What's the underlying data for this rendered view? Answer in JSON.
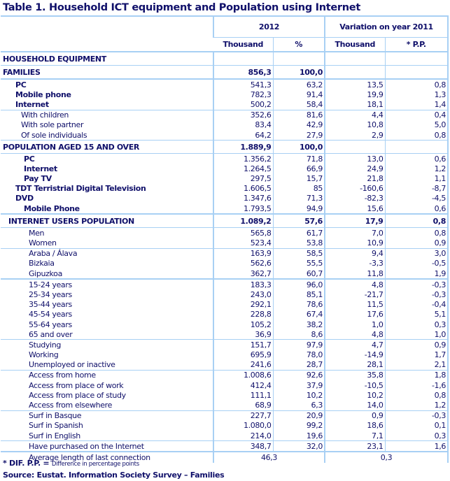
{
  "title": "Table 1. Household  ICT equipment and Population using Internet",
  "headers": {
    "group1": "2012",
    "group2": "Variation on year 2011",
    "col1": "Thousand",
    "col2": "%",
    "col3": "Thousand",
    "col4": "* P.P."
  },
  "rows": [
    {
      "type": "section",
      "label": "HOUSEHOLD EQUIPMENT",
      "values": [
        "",
        "",
        "",
        ""
      ],
      "border": "end"
    },
    {
      "type": "section",
      "label": "FAMILIES",
      "values": [
        "856,3",
        "100,0",
        "",
        ""
      ],
      "border": "thick"
    },
    {
      "type": "item",
      "bold": true,
      "label": "PC",
      "values": [
        "541,3",
        "63,2",
        "13,5",
        "0,8"
      ]
    },
    {
      "type": "item",
      "bold": true,
      "label": "Mobile phone",
      "values": [
        "782,3",
        "91,4",
        "19,9",
        "1,3"
      ]
    },
    {
      "type": "item",
      "bold": true,
      "label": "Internet",
      "values": [
        "500,2",
        "58,4",
        "18,1",
        "1,4"
      ],
      "border": "end"
    },
    {
      "type": "sub",
      "label": "With children",
      "values": [
        "352,6",
        "81,6",
        "4,4",
        "0,4"
      ]
    },
    {
      "type": "sub",
      "label": "With sole partner",
      "values": [
        "83,4",
        "42,9",
        "10,8",
        "5,0"
      ]
    },
    {
      "type": "sub",
      "label": "Of sole individuals",
      "values": [
        "64,2",
        "27,9",
        "2,9",
        "0,8"
      ],
      "border": "end"
    },
    {
      "type": "section",
      "label": "POPULATION AGED 15 AND OVER",
      "values": [
        "1.889,9",
        "100,0",
        "",
        ""
      ],
      "border": "end"
    },
    {
      "type": "pop",
      "bold": true,
      "label": "PC",
      "values": [
        "1.356,2",
        "71,8",
        "13,0",
        "0,6"
      ]
    },
    {
      "type": "pop",
      "bold": true,
      "label": "Internet",
      "values": [
        "1.264,5",
        "66,9",
        "24,9",
        "1,2"
      ]
    },
    {
      "type": "pop",
      "bold": true,
      "label": "Pay TV",
      "values": [
        "297,5",
        "15,7",
        "21,8",
        "1,1"
      ]
    },
    {
      "type": "item",
      "bold": true,
      "label": "TDT Terristrial Digital Television",
      "values": [
        "1.606,5",
        "85",
        "-160,6",
        "-8,7"
      ]
    },
    {
      "type": "item",
      "bold": true,
      "label": "DVD",
      "values": [
        "1.347,6",
        "71,3",
        "-82,3",
        "-4,5"
      ]
    },
    {
      "type": "pop",
      "bold": true,
      "label": "Mobile Phone",
      "values": [
        "1.793,5",
        "94,9",
        "15,6",
        "0,6"
      ],
      "border": "thick"
    },
    {
      "type": "section-indent",
      "label": "INTERNET USERS POPULATION",
      "values": [
        "1.089,2",
        "57,6",
        "17,9",
        "0,8"
      ],
      "border": "end"
    },
    {
      "type": "detail",
      "label": "Men",
      "values": [
        "565,8",
        "61,7",
        "7,0",
        "0,8"
      ]
    },
    {
      "type": "detail",
      "label": "Women",
      "values": [
        "523,4",
        "53,8",
        "10,9",
        "0,9"
      ],
      "border": "end"
    },
    {
      "type": "detail",
      "label": "Araba / Álava",
      "values": [
        "163,9",
        "58,5",
        "9,4",
        "3,0"
      ]
    },
    {
      "type": "detail",
      "label": "Bizkaia",
      "values": [
        "562,6",
        "55,5",
        "-3,3",
        "-0,5"
      ]
    },
    {
      "type": "detail",
      "label": "Gipuzkoa",
      "values": [
        "362,7",
        "60,7",
        "11,8",
        "1,9"
      ],
      "border": "thick"
    },
    {
      "type": "detail",
      "label": "15-24 years",
      "values": [
        "183,3",
        "96,0",
        "4,8",
        "-0,3"
      ]
    },
    {
      "type": "detail",
      "label": "25-34 years",
      "values": [
        "243,0",
        "85,1",
        "-21,7",
        "-0,3"
      ]
    },
    {
      "type": "detail",
      "label": "35-44 years",
      "values": [
        "292,1",
        "78,6",
        "11,5",
        "-0,4"
      ]
    },
    {
      "type": "detail",
      "label": "45-54 years",
      "values": [
        "228,8",
        "67,4",
        "17,6",
        "5,1"
      ]
    },
    {
      "type": "detail",
      "label": "55-64 years",
      "values": [
        "105,2",
        "38,2",
        "1,0",
        "0,3"
      ]
    },
    {
      "type": "detail",
      "label": "65 and over",
      "values": [
        "36,9",
        "8,6",
        "4,8",
        "1,0"
      ],
      "border": "end"
    },
    {
      "type": "detail",
      "label": "Studying",
      "values": [
        "151,7",
        "97,9",
        "4,7",
        "0,9"
      ]
    },
    {
      "type": "detail",
      "label": "Working",
      "values": [
        "695,9",
        "78,0",
        "-14,9",
        "1,7"
      ]
    },
    {
      "type": "detail",
      "label": "Unemployed or inactive",
      "values": [
        "241,6",
        "28,7",
        "28,1",
        "2,1"
      ],
      "border": "end"
    },
    {
      "type": "detail",
      "label": "Access from home",
      "values": [
        "1.008,6",
        "92,6",
        "35,8",
        "1,8"
      ]
    },
    {
      "type": "detail",
      "label": "Access from place of work",
      "values": [
        "412,4",
        "37,9",
        "-10,5",
        "-1,6"
      ]
    },
    {
      "type": "detail",
      "label": "Access from place of study",
      "values": [
        "111,1",
        "10,2",
        "10,2",
        "0,8"
      ]
    },
    {
      "type": "detail",
      "label": "Access from elsewhere",
      "values": [
        "68,9",
        "6,3",
        "14,0",
        "1,2"
      ],
      "border": "end"
    },
    {
      "type": "detail",
      "label": "Surf in Basque",
      "values": [
        "227,7",
        "20,9",
        "0,9",
        "-0,3"
      ]
    },
    {
      "type": "detail",
      "label": "Surf in Spanish",
      "values": [
        "1.080,0",
        "99,2",
        "18,6",
        "0,1"
      ]
    },
    {
      "type": "detail",
      "label": "Surf in English",
      "values": [
        "214,0",
        "19,6",
        "7,1",
        "0,3"
      ],
      "border": "end"
    },
    {
      "type": "detail",
      "label": "Have purchased on the Internet",
      "values": [
        "348,7",
        "32,0",
        "23,1",
        "1,6"
      ],
      "border": "end"
    }
  ],
  "last_row": {
    "label": "Average length of last connection",
    "value_2012": "46,3",
    "value_variation": "0,3"
  },
  "footnote": {
    "marker": "* DIF. P.P. =",
    "text": "Difference in percentage points"
  },
  "source": "Source: Eustat.  Information Society Survey – Families",
  "colors": {
    "text": "#10106a",
    "border": "#a8d0f4"
  }
}
